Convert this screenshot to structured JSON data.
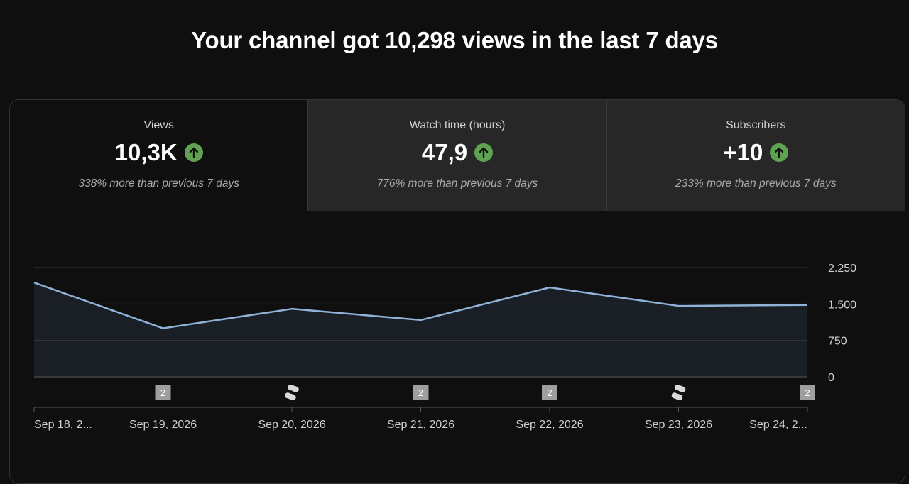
{
  "headline": "Your channel got 10,298 views in the last 7 days",
  "tabs": [
    {
      "title": "Views",
      "value": "10,3K",
      "sub": "338% more than previous 7 days",
      "trend": "up",
      "selected": true
    },
    {
      "title": "Watch time (hours)",
      "value": "47,9",
      "sub": "776% more than previous 7 days",
      "trend": "up",
      "selected": false
    },
    {
      "title": "Subscribers",
      "value": "+10",
      "sub": "233% more than previous 7 days",
      "trend": "up",
      "selected": false
    }
  ],
  "colors": {
    "background": "#0f0f0f",
    "tab_inactive": "#272727",
    "trend_up": "#5fa352",
    "line": "#8fb3d9",
    "area": "#1a1f25"
  },
  "chart_data": {
    "type": "area",
    "x": [
      "Sep 18, 2...",
      "Sep 19, 2026",
      "Sep 20, 2026",
      "Sep 21, 2026",
      "Sep 22, 2026",
      "Sep 23, 2026",
      "Sep 24, 2..."
    ],
    "series": [
      {
        "values": [
          1940,
          1000,
          1400,
          1170,
          1840,
          1460,
          1480
        ]
      }
    ],
    "ylim": [
      0,
      2250
    ],
    "yticks": [
      {
        "value": 0,
        "label": "0"
      },
      {
        "value": 750,
        "label": "750"
      },
      {
        "value": 1500,
        "label": "1.500"
      },
      {
        "value": 2250,
        "label": "2.250"
      }
    ],
    "grid": true,
    "y_axis_position": "right",
    "markers": [
      {
        "index": 1,
        "kind": "number",
        "label": "2"
      },
      {
        "index": 2,
        "kind": "shorts-icon"
      },
      {
        "index": 3,
        "kind": "number",
        "label": "2"
      },
      {
        "index": 4,
        "kind": "number",
        "label": "2"
      },
      {
        "index": 5,
        "kind": "shorts-icon"
      },
      {
        "index": 6,
        "kind": "number",
        "label": "2"
      }
    ]
  }
}
